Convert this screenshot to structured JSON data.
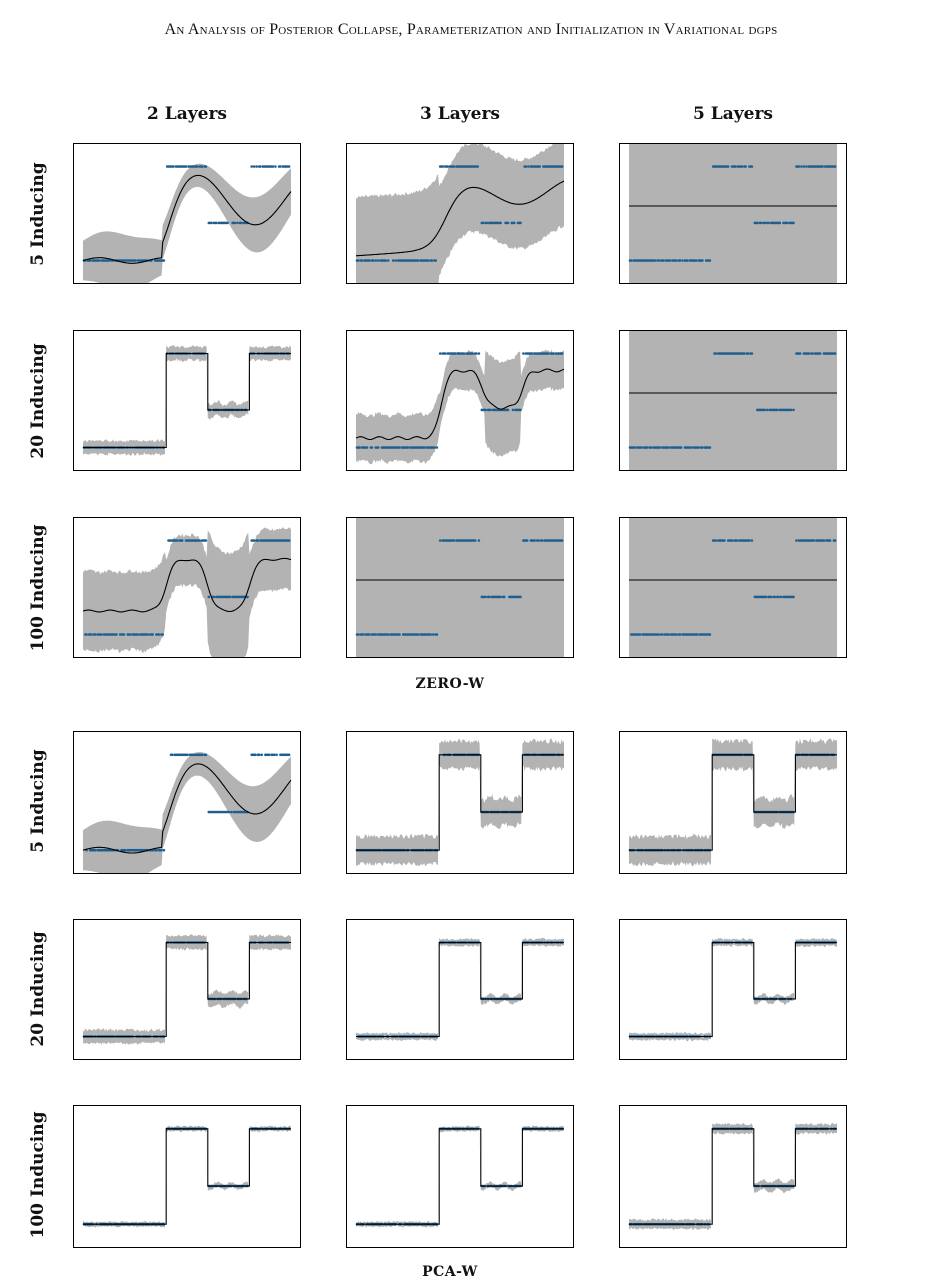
{
  "header": {
    "running_title": "An Analysis of Posterior Collapse, Parameterization and Initialization in Variational dgps"
  },
  "figure": {
    "columns": [
      "2 Layers",
      "3 Layers",
      "5 Layers"
    ],
    "rows": [
      "5 Inducing",
      "20 Inducing",
      "100 Inducing"
    ],
    "sections": [
      "ZERO-W",
      "PCA-W"
    ]
  },
  "colors": {
    "band": "#b3b3b3",
    "mean": "#000000",
    "points": "#1f5f8f",
    "frame": "#000000"
  },
  "chart_data": {
    "type": "line",
    "description_of_data": "Step-function regression targets with predictive mean and uncertainty band per panel",
    "data_levels": [
      {
        "x_range": [
          0.0,
          0.4
        ],
        "y": 0.0
      },
      {
        "x_range": [
          0.4,
          0.6
        ],
        "y": 1.0
      },
      {
        "x_range": [
          0.6,
          0.8
        ],
        "y": 0.4
      },
      {
        "x_range": [
          0.8,
          1.0
        ],
        "y": 1.0
      }
    ],
    "ylim": [
      -0.25,
      1.25
    ],
    "panels": [
      {
        "section": 0,
        "row": 0,
        "col": 0,
        "kind": "smooth",
        "amp": 0.45,
        "band": 0.3
      },
      {
        "section": 0,
        "row": 0,
        "col": 1,
        "kind": "noisy-smooth",
        "amp": 0.3,
        "band": 0.6
      },
      {
        "section": 0,
        "row": 0,
        "col": 2,
        "kind": "collapsed",
        "level": 0.58
      },
      {
        "section": 0,
        "row": 1,
        "col": 0,
        "kind": "step-fit",
        "band": 0.06
      },
      {
        "section": 0,
        "row": 1,
        "col": 1,
        "kind": "soft-step",
        "band": 0.35
      },
      {
        "section": 0,
        "row": 1,
        "col": 2,
        "kind": "collapsed",
        "level": 0.58
      },
      {
        "section": 0,
        "row": 2,
        "col": 0,
        "kind": "soft-step-wide",
        "band": 0.45
      },
      {
        "section": 0,
        "row": 2,
        "col": 1,
        "kind": "collapsed",
        "level": 0.58
      },
      {
        "section": 0,
        "row": 2,
        "col": 2,
        "kind": "collapsed",
        "level": 0.58
      },
      {
        "section": 1,
        "row": 0,
        "col": 0,
        "kind": "smooth",
        "amp": 0.45,
        "band": 0.3
      },
      {
        "section": 1,
        "row": 0,
        "col": 1,
        "kind": "step-fit",
        "band": 0.12
      },
      {
        "section": 1,
        "row": 0,
        "col": 2,
        "kind": "step-fit",
        "band": 0.12
      },
      {
        "section": 1,
        "row": 1,
        "col": 0,
        "kind": "step-fit",
        "band": 0.06
      },
      {
        "section": 1,
        "row": 1,
        "col": 1,
        "kind": "step-fit",
        "band": 0.03
      },
      {
        "section": 1,
        "row": 1,
        "col": 2,
        "kind": "step-fit",
        "band": 0.03
      },
      {
        "section": 1,
        "row": 2,
        "col": 0,
        "kind": "step-fit",
        "band": 0.02
      },
      {
        "section": 1,
        "row": 2,
        "col": 1,
        "kind": "step-fit",
        "band": 0.02
      },
      {
        "section": 1,
        "row": 2,
        "col": 2,
        "kind": "step-fit",
        "band": 0.04
      }
    ]
  }
}
